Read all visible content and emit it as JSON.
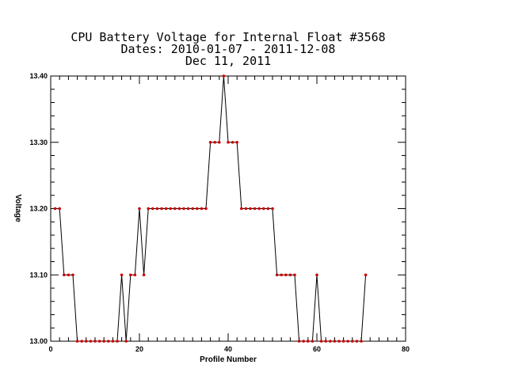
{
  "chart_data": {
    "type": "line",
    "title_lines": [
      "CPU Battery Voltage for Internal Float #3568",
      "Dates:  2010-01-07 -  2011-12-08",
      "Dec 11, 2011"
    ],
    "xlabel": "Profile Number",
    "ylabel": "Voltage",
    "xlim": [
      0,
      80
    ],
    "ylim": [
      13.0,
      13.4
    ],
    "xticks": [
      0,
      20,
      40,
      60,
      80
    ],
    "xtick_labels": [
      "0",
      "20",
      "40",
      "60",
      "80"
    ],
    "yticks": [
      13.0,
      13.1,
      13.2,
      13.3,
      13.4
    ],
    "ytick_labels": [
      "13.00",
      "13.10",
      "13.20",
      "13.30",
      "13.40"
    ],
    "x_minor_step": 2,
    "y_minor_step": 0.02,
    "grid": false,
    "line_color": "#000000",
    "marker_color": "#cc0000",
    "series": [
      {
        "x": [
          1,
          2,
          3,
          4,
          5,
          6,
          7,
          8,
          9,
          10,
          11,
          12,
          13,
          14,
          15,
          16,
          17,
          18,
          19,
          20,
          21,
          22,
          23,
          24,
          25,
          26,
          27,
          28,
          29,
          30,
          31,
          32,
          33,
          34,
          35,
          36,
          37,
          38,
          39,
          40,
          41,
          42,
          43,
          44,
          45,
          46,
          47,
          48,
          49,
          50,
          51,
          52,
          53,
          54,
          55,
          56,
          57,
          58,
          59,
          60,
          61,
          62,
          63,
          64,
          65,
          66,
          67,
          68,
          69,
          70,
          71
        ],
        "y": [
          13.2,
          13.2,
          13.1,
          13.1,
          13.1,
          13.0,
          13.0,
          13.0,
          13.0,
          13.0,
          13.0,
          13.0,
          13.0,
          13.0,
          13.0,
          13.1,
          13.0,
          13.1,
          13.1,
          13.2,
          13.1,
          13.2,
          13.2,
          13.2,
          13.2,
          13.2,
          13.2,
          13.2,
          13.2,
          13.2,
          13.2,
          13.2,
          13.2,
          13.2,
          13.2,
          13.3,
          13.3,
          13.3,
          13.4,
          13.3,
          13.3,
          13.3,
          13.2,
          13.2,
          13.2,
          13.2,
          13.2,
          13.2,
          13.2,
          13.2,
          13.1,
          13.1,
          13.1,
          13.1,
          13.1,
          13.0,
          13.0,
          13.0,
          13.0,
          13.1,
          13.0,
          13.0,
          13.0,
          13.0,
          13.0,
          13.0,
          13.0,
          13.0,
          13.0,
          13.0,
          13.1
        ]
      }
    ]
  }
}
